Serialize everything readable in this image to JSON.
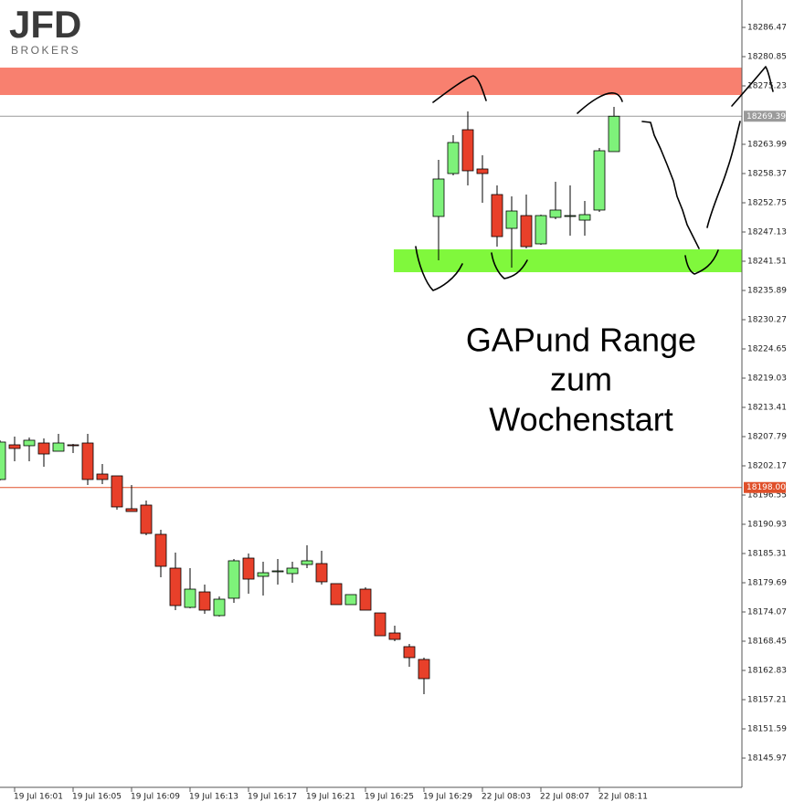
{
  "logo": {
    "name": "JFD",
    "sub": "BROKERS"
  },
  "annotation": [
    "GAPund Range",
    "zum",
    "Wochenstart"
  ],
  "chart_data": {
    "type": "candlestick",
    "categories": [
      null,
      "19 Jul 16:01",
      null,
      null,
      null,
      "19 Jul 16:05",
      null,
      null,
      null,
      "19 Jul 16:09",
      null,
      null,
      null,
      "19 Jul 16:13",
      null,
      null,
      null,
      "19 Jul 16:17",
      null,
      null,
      null,
      "19 Jul 16:21",
      null,
      null,
      null,
      "19 Jul 16:25",
      null,
      null,
      null,
      "19 Jul 16:29",
      null,
      null,
      null,
      "22 Jul 08:03",
      null,
      null,
      null,
      "22 Jul 08:07",
      null,
      null,
      null,
      "22 Jul 08:11",
      null
    ],
    "open": [
      18199.54,
      18206.21,
      18206.04,
      18206.56,
      18204.98,
      18206.21,
      18206.56,
      18200.59,
      18200.24,
      18193.92,
      18194.62,
      18189.0,
      18182.5,
      18174.95,
      18177.93,
      18173.37,
      18176.71,
      18184.43,
      18180.92,
      18181.97,
      18181.45,
      18183.2,
      18183.38,
      18179.52,
      18175.48,
      18178.46,
      18173.89,
      18170.03,
      18167.4,
      18164.94,
      18250.12,
      18258.37,
      18266.8,
      18259.25,
      18254.33,
      18247.83,
      18250.29,
      18244.85,
      18249.94,
      18250.29,
      18249.41,
      18251.35,
      18262.59
    ],
    "high": [
      18207.09,
      18207.79,
      18207.62,
      18207.44,
      18208.32,
      18206.39,
      18208.32,
      18202.52,
      18200.24,
      18198.48,
      18195.5,
      18189.88,
      18185.49,
      18182.5,
      18179.34,
      18177.06,
      18184.26,
      18185.31,
      18183.73,
      18184.26,
      18183.73,
      18186.89,
      18185.84,
      18179.52,
      18177.41,
      18178.81,
      18173.89,
      18171.44,
      18167.92,
      18165.29,
      18261.01,
      18265.75,
      18270.31,
      18261.88,
      18256.09,
      18253.98,
      18254.33,
      18250.47,
      18256.79,
      18256.09,
      18253.1,
      18263.29,
      18271.19
    ],
    "low": [
      18199.36,
      18203.05,
      18203.05,
      18202.0,
      18204.98,
      18204.63,
      18198.48,
      18198.66,
      18193.74,
      18193.39,
      18188.82,
      18180.75,
      18174.42,
      18174.77,
      18173.72,
      18173.19,
      18175.83,
      18177.58,
      18177.23,
      18179.34,
      18179.69,
      18182.5,
      18179.34,
      18175.48,
      18175.48,
      18174.42,
      18169.5,
      18168.45,
      18163.53,
      18158.26,
      18241.69,
      18258.02,
      18256.09,
      18252.75,
      18244.32,
      18240.28,
      18243.97,
      18244.67,
      18249.59,
      18246.43,
      18246.43,
      18250.99,
      18262.59
    ],
    "close": [
      18206.74,
      18205.51,
      18207.09,
      18204.45,
      18206.56,
      18206.04,
      18199.54,
      18199.54,
      18194.27,
      18193.39,
      18189.17,
      18182.85,
      18175.3,
      18178.46,
      18174.42,
      18176.53,
      18183.91,
      18180.39,
      18181.62,
      18181.97,
      18182.5,
      18183.91,
      18179.87,
      18175.48,
      18177.41,
      18174.42,
      18169.5,
      18168.8,
      18165.29,
      18161.25,
      18257.32,
      18264.34,
      18258.9,
      18258.37,
      18246.25,
      18251.17,
      18244.32,
      18250.29,
      18251.35,
      18250.29,
      18250.47,
      18262.76,
      18269.39
    ],
    "up_color": "#7ef27a",
    "down_color": "#e8402a",
    "ylim": [
      18140.35,
      18291.74
    ],
    "yticks": [
      18286.47,
      18280.85,
      18275.23,
      18263.99,
      18258.37,
      18252.75,
      18247.13,
      18241.51,
      18235.89,
      18230.27,
      18224.65,
      18219.03,
      18213.41,
      18207.79,
      18202.17,
      18196.55,
      18190.93,
      18185.31,
      18179.69,
      18174.07,
      18168.45,
      18162.83,
      18157.21,
      18151.59,
      18145.97
    ],
    "zones": [
      {
        "low": 18273.47,
        "high": 18278.74,
        "color": "#f8806f"
      },
      {
        "low": 18239.4,
        "high": 18243.79,
        "color": "#80f83c"
      }
    ],
    "price_lines": [
      {
        "value": 18269.39,
        "label": "18269.39",
        "color": "#9a9a9a"
      },
      {
        "value": 18198,
        "label": "18198.00",
        "color": "#e0502a"
      }
    ]
  }
}
